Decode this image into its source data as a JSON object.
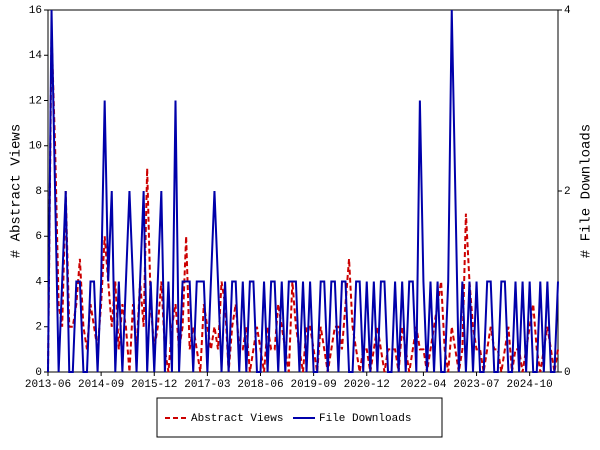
{
  "chart_data": {
    "type": "line",
    "y_label": "# Abstract Views",
    "y2_label": "# File Downloads",
    "categories": [
      "2013-06",
      null,
      null,
      null,
      null,
      null,
      null,
      null,
      null,
      null,
      null,
      null,
      null,
      null,
      null,
      "2014-09",
      null,
      null,
      null,
      null,
      null,
      null,
      null,
      null,
      null,
      null,
      null,
      null,
      null,
      null,
      "2015-12",
      null,
      null,
      null,
      null,
      null,
      null,
      null,
      null,
      null,
      null,
      null,
      null,
      null,
      null,
      "2017-03",
      null,
      null,
      null,
      null,
      null,
      null,
      null,
      null,
      null,
      null,
      null,
      null,
      null,
      null,
      "2018-06",
      null,
      null,
      null,
      null,
      null,
      null,
      null,
      null,
      null,
      null,
      null,
      null,
      null,
      null,
      "2019-09",
      null,
      null,
      null,
      null,
      null,
      null,
      null,
      null,
      null,
      null,
      null,
      null,
      null,
      null,
      "2020-12",
      null,
      null,
      null,
      null,
      null,
      null,
      null,
      null,
      null,
      null,
      null,
      null,
      null,
      null,
      null,
      "2022-04",
      null,
      null,
      null,
      null,
      null,
      null,
      null,
      null,
      null,
      null,
      null,
      null,
      null,
      null,
      "2023-07",
      null,
      null,
      null,
      null,
      null,
      null,
      null,
      null,
      null,
      null,
      null,
      null,
      null,
      null,
      "2024-10",
      null,
      null,
      null,
      null,
      null,
      null,
      null,
      null
    ],
    "series": [
      {
        "name": "Abstract Views",
        "color": "#cc0000",
        "dash": true,
        "values": [
          0,
          15,
          10,
          3,
          2,
          8,
          2,
          2,
          3,
          5,
          2,
          1,
          3,
          2,
          1,
          3,
          6,
          4,
          2,
          4,
          1,
          3,
          2,
          0,
          3,
          1,
          4,
          2,
          9,
          3,
          1,
          2,
          4,
          1,
          0,
          2,
          3,
          1,
          2,
          6,
          1,
          2,
          1,
          0,
          3,
          2,
          1,
          2,
          1,
          4,
          3,
          0,
          2,
          3,
          1,
          1,
          2,
          0,
          1,
          2,
          1,
          0,
          2,
          1,
          1,
          3,
          2,
          1,
          0,
          4,
          2,
          1,
          0,
          2,
          2,
          1,
          0,
          2,
          1,
          0,
          1,
          2,
          2,
          1,
          3,
          5,
          2,
          1,
          0,
          1,
          1,
          0,
          1,
          2,
          1,
          0,
          1,
          1,
          1,
          0,
          2,
          1,
          0,
          1,
          2,
          1,
          1,
          0,
          1,
          2,
          3,
          4,
          1,
          0,
          2,
          1,
          0,
          1,
          7,
          4,
          2,
          1,
          1,
          0,
          1,
          2,
          1,
          1,
          0,
          1,
          2,
          0,
          1,
          1,
          0,
          1,
          2,
          3,
          1,
          0,
          1,
          2,
          1,
          0,
          1
        ]
      },
      {
        "name": "File Downloads",
        "color": "#0000aa",
        "dash": false,
        "axis": "y2",
        "values": [
          0,
          4,
          2,
          0,
          1,
          2,
          0,
          0,
          1,
          1,
          0,
          0,
          1,
          1,
          0,
          1,
          3,
          1,
          2,
          0,
          1,
          0,
          1,
          2,
          1,
          0,
          1,
          2,
          0,
          1,
          0,
          1,
          2,
          0,
          1,
          0,
          3,
          0,
          1,
          1,
          1,
          0,
          1,
          1,
          1,
          0,
          1,
          2,
          1,
          0,
          1,
          0,
          1,
          1,
          0,
          1,
          0,
          1,
          1,
          0,
          0,
          1,
          0,
          1,
          1,
          0,
          1,
          0,
          1,
          1,
          1,
          0,
          1,
          0,
          1,
          0,
          0,
          1,
          1,
          0,
          1,
          1,
          0,
          1,
          1,
          0,
          0,
          1,
          1,
          0,
          1,
          0,
          1,
          0,
          1,
          1,
          0,
          0,
          1,
          0,
          1,
          0,
          1,
          1,
          0,
          3,
          1,
          0,
          1,
          0,
          1,
          0,
          0,
          1,
          4,
          2,
          0,
          1,
          0,
          1,
          0,
          1,
          0,
          0,
          1,
          1,
          0,
          0,
          1,
          1,
          0,
          0,
          1,
          0,
          1,
          0,
          1,
          0,
          0,
          1,
          0,
          1,
          0,
          0,
          1
        ]
      }
    ],
    "ylim": [
      0,
      16
    ],
    "yticks": [
      0,
      2,
      4,
      6,
      8,
      10,
      12,
      14,
      16
    ],
    "y2lim": [
      0,
      4
    ],
    "y2ticks": [
      0,
      2,
      4
    ],
    "legend": "bottom"
  }
}
